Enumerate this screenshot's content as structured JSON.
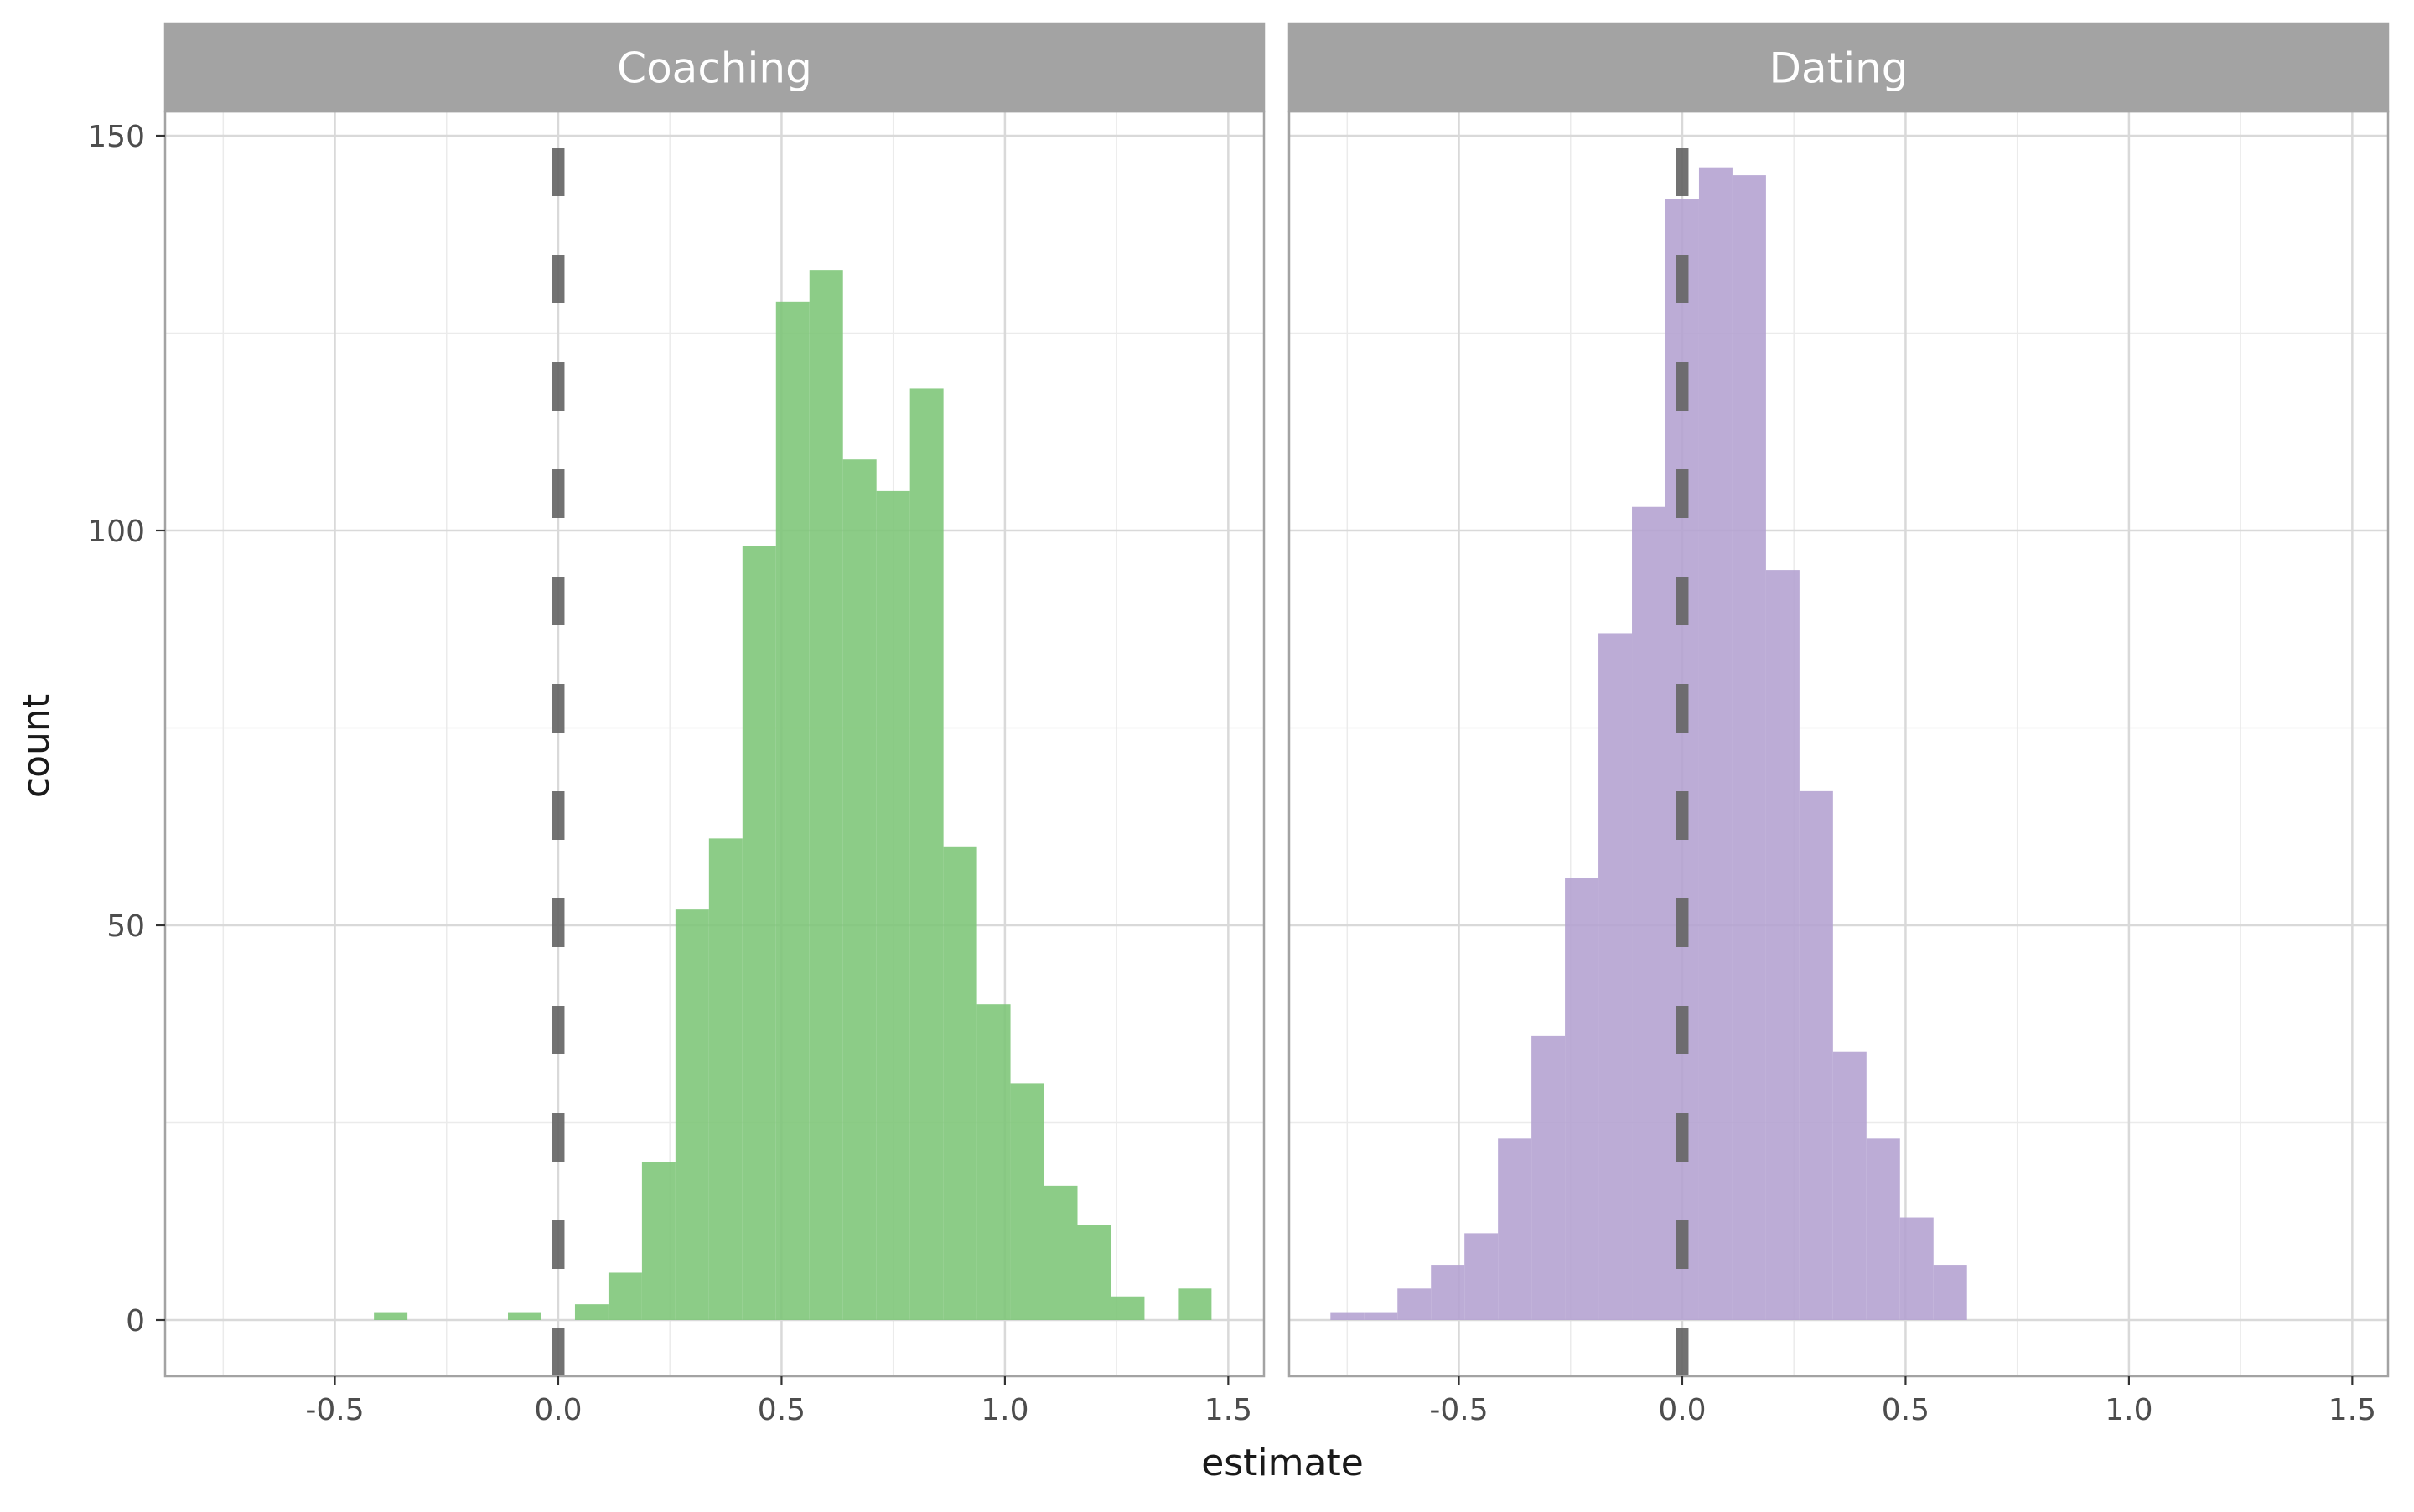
{
  "chart_data": {
    "type": "bar",
    "subtype": "faceted-histogram",
    "xlabel": "estimate",
    "ylabel": "count",
    "xlim": [
      -0.88,
      1.58
    ],
    "ylim": [
      -7,
      150
    ],
    "x_ticks": [
      -0.5,
      0.0,
      0.5,
      1.0,
      1.5
    ],
    "x_tick_labels": [
      "-0.5",
      "0.0",
      "0.5",
      "1.0",
      "1.5"
    ],
    "y_ticks": [
      0,
      50,
      100,
      150
    ],
    "y_tick_labels": [
      "0",
      "50",
      "100",
      "150"
    ],
    "grid": true,
    "reference_line": {
      "x": 0.0,
      "style": "dashed",
      "color": "#666666"
    },
    "bin_width": 0.075,
    "facets": [
      {
        "name": "Coaching",
        "color": "#7cc576",
        "bins": [
          {
            "x0": -0.4125,
            "x1": -0.3375,
            "count": 1
          },
          {
            "x0": -0.1125,
            "x1": -0.0375,
            "count": 1
          },
          {
            "x0": 0.0375,
            "x1": 0.1125,
            "count": 2
          },
          {
            "x0": 0.1125,
            "x1": 0.1875,
            "count": 6
          },
          {
            "x0": 0.1875,
            "x1": 0.2625,
            "count": 20
          },
          {
            "x0": 0.2625,
            "x1": 0.3375,
            "count": 52
          },
          {
            "x0": 0.3375,
            "x1": 0.4125,
            "count": 61
          },
          {
            "x0": 0.4125,
            "x1": 0.4875,
            "count": 98
          },
          {
            "x0": 0.4875,
            "x1": 0.5625,
            "count": 129
          },
          {
            "x0": 0.5625,
            "x1": 0.6375,
            "count": 133
          },
          {
            "x0": 0.6375,
            "x1": 0.7125,
            "count": 109
          },
          {
            "x0": 0.7125,
            "x1": 0.7875,
            "count": 105
          },
          {
            "x0": 0.7875,
            "x1": 0.8625,
            "count": 118
          },
          {
            "x0": 0.8625,
            "x1": 0.9375,
            "count": 60
          },
          {
            "x0": 0.9375,
            "x1": 1.0125,
            "count": 40
          },
          {
            "x0": 1.0125,
            "x1": 1.0875,
            "count": 30
          },
          {
            "x0": 1.0875,
            "x1": 1.1625,
            "count": 17
          },
          {
            "x0": 1.1625,
            "x1": 1.2375,
            "count": 12
          },
          {
            "x0": 1.2375,
            "x1": 1.3125,
            "count": 3
          },
          {
            "x0": 1.3875,
            "x1": 1.4625,
            "count": 4
          }
        ]
      },
      {
        "name": "Dating",
        "color": "#b3a0d0",
        "bins": [
          {
            "x0": -0.7875,
            "x1": -0.7125,
            "count": 1
          },
          {
            "x0": -0.7125,
            "x1": -0.6375,
            "count": 1
          },
          {
            "x0": -0.6375,
            "x1": -0.5625,
            "count": 4
          },
          {
            "x0": -0.5625,
            "x1": -0.4875,
            "count": 7
          },
          {
            "x0": -0.4875,
            "x1": -0.4125,
            "count": 11
          },
          {
            "x0": -0.4125,
            "x1": -0.3375,
            "count": 23
          },
          {
            "x0": -0.3375,
            "x1": -0.2625,
            "count": 36
          },
          {
            "x0": -0.2625,
            "x1": -0.1875,
            "count": 56
          },
          {
            "x0": -0.1875,
            "x1": -0.1125,
            "count": 87
          },
          {
            "x0": -0.1125,
            "x1": -0.0375,
            "count": 103
          },
          {
            "x0": -0.0375,
            "x1": 0.0375,
            "count": 142
          },
          {
            "x0": 0.0375,
            "x1": 0.1125,
            "count": 146
          },
          {
            "x0": 0.1125,
            "x1": 0.1875,
            "count": 145
          },
          {
            "x0": 0.1875,
            "x1": 0.2625,
            "count": 95
          },
          {
            "x0": 0.2625,
            "x1": 0.3375,
            "count": 67
          },
          {
            "x0": 0.3375,
            "x1": 0.4125,
            "count": 34
          },
          {
            "x0": 0.4125,
            "x1": 0.4875,
            "count": 23
          },
          {
            "x0": 0.4875,
            "x1": 0.5625,
            "count": 13
          },
          {
            "x0": 0.5625,
            "x1": 0.6375,
            "count": 7
          }
        ]
      }
    ]
  }
}
